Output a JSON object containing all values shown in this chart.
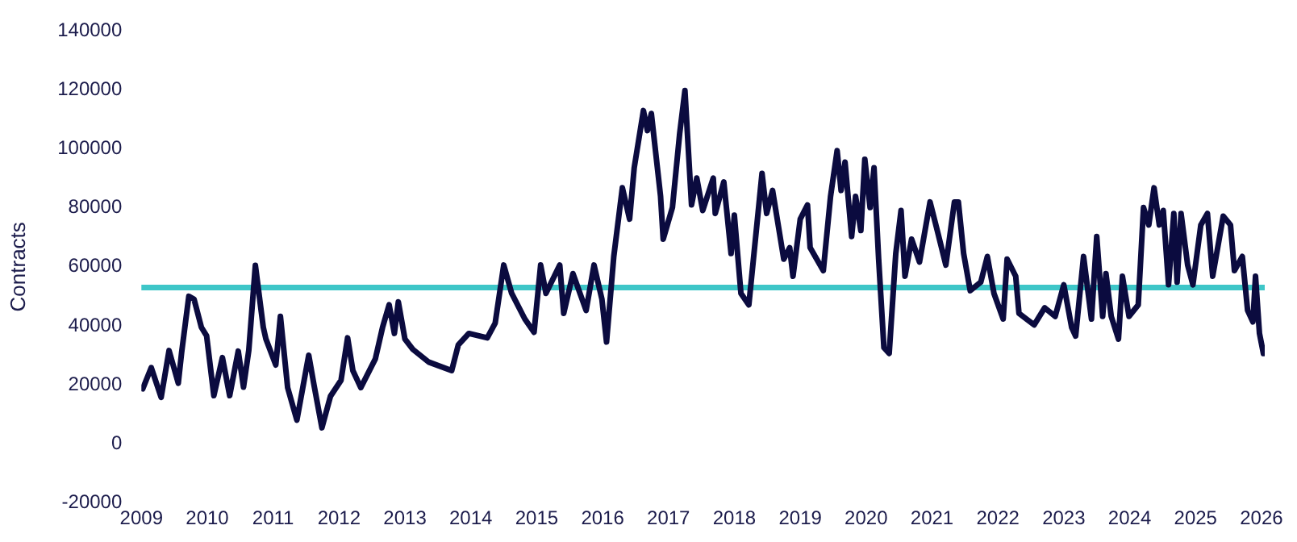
{
  "chart_data": {
    "type": "line",
    "ylabel": "Contracts",
    "xlim": [
      2009,
      2026.05
    ],
    "xticks": [
      2009,
      2010,
      2011,
      2012,
      2013,
      2014,
      2015,
      2016,
      2017,
      2018,
      2019,
      2020,
      2021,
      2022,
      2023,
      2024,
      2025,
      2026
    ],
    "ylim": [
      -20000,
      140000
    ],
    "yticks": [
      -20000,
      0,
      20000,
      40000,
      60000,
      80000,
      100000,
      120000,
      140000
    ],
    "grid": false,
    "legend": false,
    "marker": "none",
    "line_style": "solid",
    "ref_lines": [
      {
        "axis": "y",
        "value": 53000,
        "label": null,
        "color": "#3ec6c8"
      }
    ],
    "series": [
      {
        "color": "#0b0b3f",
        "x": [
          2009.02,
          2009.15,
          2009.3,
          2009.42,
          2009.56,
          2009.61,
          2009.72,
          2009.8,
          2009.91,
          2009.99,
          2010.1,
          2010.23,
          2010.34,
          2010.47,
          2010.55,
          2010.63,
          2010.73,
          2010.85,
          2010.89,
          2011.04,
          2011.11,
          2011.22,
          2011.36,
          2011.54,
          2011.62,
          2011.74,
          2011.87,
          2012.03,
          2012.13,
          2012.21,
          2012.33,
          2012.55,
          2012.66,
          2012.76,
          2012.84,
          2012.9,
          2013.0,
          2013.12,
          2013.36,
          2013.71,
          2013.81,
          2013.97,
          2014.25,
          2014.37,
          2014.5,
          2014.62,
          2014.82,
          2014.96,
          2015.06,
          2015.14,
          2015.35,
          2015.41,
          2015.55,
          2015.75,
          2015.87,
          2015.99,
          2016.06,
          2016.17,
          2016.3,
          2016.41,
          2016.48,
          2016.62,
          2016.68,
          2016.74,
          2016.88,
          2016.92,
          2017.06,
          2017.17,
          2017.25,
          2017.35,
          2017.43,
          2017.52,
          2017.68,
          2017.71,
          2017.84,
          2017.95,
          2018.0,
          2018.1,
          2018.22,
          2018.42,
          2018.49,
          2018.58,
          2018.75,
          2018.84,
          2018.89,
          2019.0,
          2019.11,
          2019.15,
          2019.35,
          2019.46,
          2019.56,
          2019.62,
          2019.68,
          2019.78,
          2019.84,
          2019.92,
          2019.98,
          2020.06,
          2020.12,
          2020.19,
          2020.27,
          2020.35,
          2020.45,
          2020.53,
          2020.59,
          2020.69,
          2020.81,
          2020.97,
          2021.08,
          2021.21,
          2021.34,
          2021.4,
          2021.48,
          2021.58,
          2021.74,
          2021.84,
          2021.94,
          2022.08,
          2022.14,
          2022.27,
          2022.32,
          2022.55,
          2022.71,
          2022.87,
          2023.0,
          2023.12,
          2023.18,
          2023.3,
          2023.42,
          2023.5,
          2023.59,
          2023.64,
          2023.72,
          2023.83,
          2023.89,
          2023.99,
          2024.13,
          2024.21,
          2024.29,
          2024.37,
          2024.45,
          2024.51,
          2024.59,
          2024.67,
          2024.72,
          2024.78,
          2024.88,
          2024.96,
          2025.08,
          2025.18,
          2025.26,
          2025.42,
          2025.53,
          2025.59,
          2025.71,
          2025.79,
          2025.87,
          2025.91,
          2025.97,
          2026.03
        ],
        "values": [
          18600,
          25800,
          15700,
          31600,
          20500,
          30800,
          50000,
          49000,
          39500,
          36600,
          16300,
          29200,
          16300,
          31400,
          19200,
          31600,
          60500,
          39500,
          35500,
          26700,
          43200,
          19000,
          8000,
          30000,
          19900,
          5400,
          16100,
          21500,
          35900,
          24800,
          19000,
          28700,
          39400,
          47100,
          37400,
          48100,
          35500,
          32000,
          27700,
          24800,
          33500,
          37400,
          35900,
          40900,
          60600,
          51000,
          42300,
          37800,
          60600,
          51000,
          60600,
          44200,
          57700,
          45200,
          60600,
          49000,
          34500,
          63500,
          86800,
          76200,
          93600,
          113000,
          106200,
          112000,
          83900,
          69400,
          80100,
          105200,
          119800,
          81000,
          90100,
          79100,
          90100,
          78100,
          88800,
          64500,
          77500,
          51000,
          47100,
          91700,
          78100,
          85900,
          62600,
          66500,
          56800,
          76200,
          81000,
          66500,
          58700,
          83900,
          99400,
          85900,
          95500,
          70300,
          83900,
          72300,
          96500,
          80100,
          93600,
          62600,
          32600,
          30600,
          64500,
          79100,
          56800,
          69400,
          61600,
          82000,
          72300,
          60600,
          82000,
          82000,
          64500,
          51900,
          54800,
          63500,
          51000,
          42300,
          62600,
          56800,
          44200,
          40300,
          46100,
          43200,
          53900,
          39400,
          36500,
          63500,
          42300,
          70300,
          43200,
          57700,
          43200,
          35500,
          56800,
          43200,
          47100,
          80100,
          74200,
          86800,
          74200,
          79100,
          53900,
          78100,
          54800,
          78100,
          60600,
          53900,
          74200,
          78100,
          56800,
          77200,
          74200,
          58700,
          63500,
          45200,
          41300,
          56800,
          37400,
          30600
        ]
      }
    ]
  }
}
